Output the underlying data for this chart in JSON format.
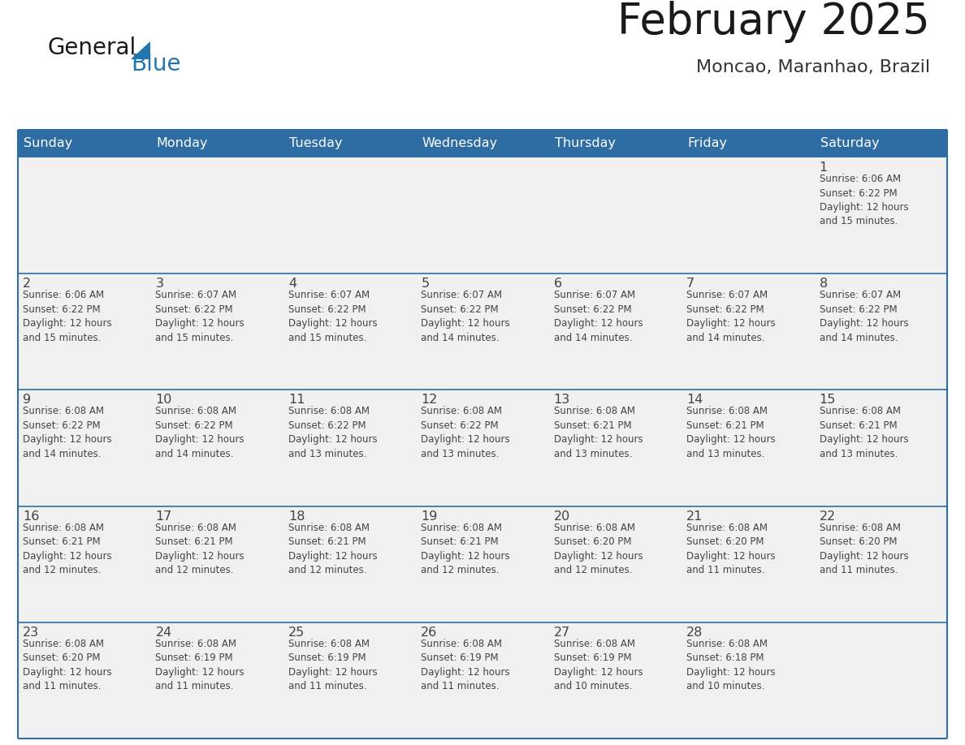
{
  "title": "February 2025",
  "subtitle": "Moncao, Maranhao, Brazil",
  "header_color": "#2E6DA4",
  "header_text_color": "#FFFFFF",
  "cell_bg_color": "#F0F0F0",
  "cell_bg_color_white": "#FFFFFF",
  "text_color": "#444444",
  "line_color": "#2E6DA4",
  "days_of_week": [
    "Sunday",
    "Monday",
    "Tuesday",
    "Wednesday",
    "Thursday",
    "Friday",
    "Saturday"
  ],
  "weeks": [
    [
      {
        "day": null,
        "info": null
      },
      {
        "day": null,
        "info": null
      },
      {
        "day": null,
        "info": null
      },
      {
        "day": null,
        "info": null
      },
      {
        "day": null,
        "info": null
      },
      {
        "day": null,
        "info": null
      },
      {
        "day": 1,
        "info": "Sunrise: 6:06 AM\nSunset: 6:22 PM\nDaylight: 12 hours\nand 15 minutes."
      }
    ],
    [
      {
        "day": 2,
        "info": "Sunrise: 6:06 AM\nSunset: 6:22 PM\nDaylight: 12 hours\nand 15 minutes."
      },
      {
        "day": 3,
        "info": "Sunrise: 6:07 AM\nSunset: 6:22 PM\nDaylight: 12 hours\nand 15 minutes."
      },
      {
        "day": 4,
        "info": "Sunrise: 6:07 AM\nSunset: 6:22 PM\nDaylight: 12 hours\nand 15 minutes."
      },
      {
        "day": 5,
        "info": "Sunrise: 6:07 AM\nSunset: 6:22 PM\nDaylight: 12 hours\nand 14 minutes."
      },
      {
        "day": 6,
        "info": "Sunrise: 6:07 AM\nSunset: 6:22 PM\nDaylight: 12 hours\nand 14 minutes."
      },
      {
        "day": 7,
        "info": "Sunrise: 6:07 AM\nSunset: 6:22 PM\nDaylight: 12 hours\nand 14 minutes."
      },
      {
        "day": 8,
        "info": "Sunrise: 6:07 AM\nSunset: 6:22 PM\nDaylight: 12 hours\nand 14 minutes."
      }
    ],
    [
      {
        "day": 9,
        "info": "Sunrise: 6:08 AM\nSunset: 6:22 PM\nDaylight: 12 hours\nand 14 minutes."
      },
      {
        "day": 10,
        "info": "Sunrise: 6:08 AM\nSunset: 6:22 PM\nDaylight: 12 hours\nand 14 minutes."
      },
      {
        "day": 11,
        "info": "Sunrise: 6:08 AM\nSunset: 6:22 PM\nDaylight: 12 hours\nand 13 minutes."
      },
      {
        "day": 12,
        "info": "Sunrise: 6:08 AM\nSunset: 6:22 PM\nDaylight: 12 hours\nand 13 minutes."
      },
      {
        "day": 13,
        "info": "Sunrise: 6:08 AM\nSunset: 6:21 PM\nDaylight: 12 hours\nand 13 minutes."
      },
      {
        "day": 14,
        "info": "Sunrise: 6:08 AM\nSunset: 6:21 PM\nDaylight: 12 hours\nand 13 minutes."
      },
      {
        "day": 15,
        "info": "Sunrise: 6:08 AM\nSunset: 6:21 PM\nDaylight: 12 hours\nand 13 minutes."
      }
    ],
    [
      {
        "day": 16,
        "info": "Sunrise: 6:08 AM\nSunset: 6:21 PM\nDaylight: 12 hours\nand 12 minutes."
      },
      {
        "day": 17,
        "info": "Sunrise: 6:08 AM\nSunset: 6:21 PM\nDaylight: 12 hours\nand 12 minutes."
      },
      {
        "day": 18,
        "info": "Sunrise: 6:08 AM\nSunset: 6:21 PM\nDaylight: 12 hours\nand 12 minutes."
      },
      {
        "day": 19,
        "info": "Sunrise: 6:08 AM\nSunset: 6:21 PM\nDaylight: 12 hours\nand 12 minutes."
      },
      {
        "day": 20,
        "info": "Sunrise: 6:08 AM\nSunset: 6:20 PM\nDaylight: 12 hours\nand 12 minutes."
      },
      {
        "day": 21,
        "info": "Sunrise: 6:08 AM\nSunset: 6:20 PM\nDaylight: 12 hours\nand 11 minutes."
      },
      {
        "day": 22,
        "info": "Sunrise: 6:08 AM\nSunset: 6:20 PM\nDaylight: 12 hours\nand 11 minutes."
      }
    ],
    [
      {
        "day": 23,
        "info": "Sunrise: 6:08 AM\nSunset: 6:20 PM\nDaylight: 12 hours\nand 11 minutes."
      },
      {
        "day": 24,
        "info": "Sunrise: 6:08 AM\nSunset: 6:19 PM\nDaylight: 12 hours\nand 11 minutes."
      },
      {
        "day": 25,
        "info": "Sunrise: 6:08 AM\nSunset: 6:19 PM\nDaylight: 12 hours\nand 11 minutes."
      },
      {
        "day": 26,
        "info": "Sunrise: 6:08 AM\nSunset: 6:19 PM\nDaylight: 12 hours\nand 11 minutes."
      },
      {
        "day": 27,
        "info": "Sunrise: 6:08 AM\nSunset: 6:19 PM\nDaylight: 12 hours\nand 10 minutes."
      },
      {
        "day": 28,
        "info": "Sunrise: 6:08 AM\nSunset: 6:18 PM\nDaylight: 12 hours\nand 10 minutes."
      },
      {
        "day": null,
        "info": null
      }
    ]
  ],
  "logo_text1": "General",
  "logo_text2": "Blue",
  "logo_color1": "#1a1a1a",
  "logo_color2": "#2176AE",
  "fig_width": 11.88,
  "fig_height": 9.18,
  "dpi": 100
}
